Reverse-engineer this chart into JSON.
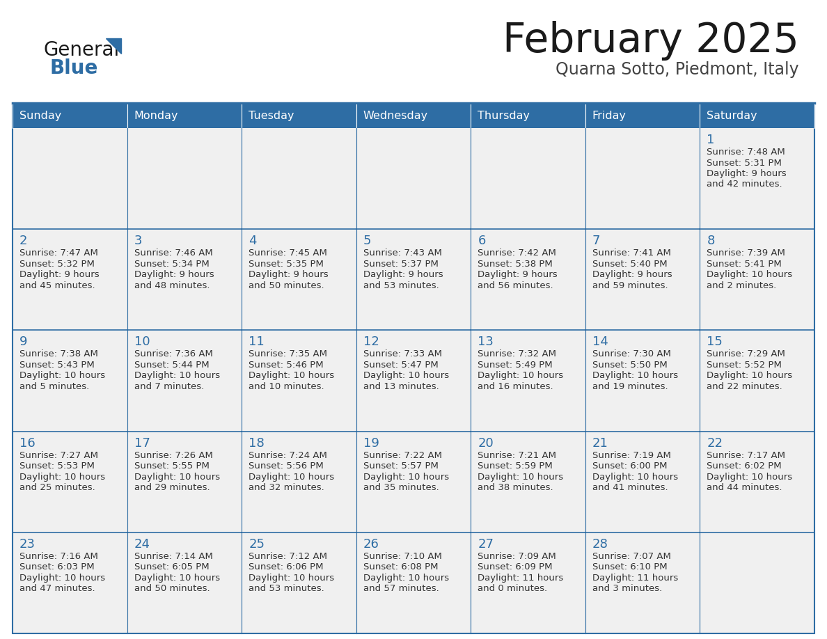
{
  "title": "February 2025",
  "subtitle": "Quarna Sotto, Piedmont, Italy",
  "header_bg": "#2E6DA4",
  "header_text": "#FFFFFF",
  "cell_bg": "#F0F0F0",
  "day_number_color": "#2E6DA4",
  "text_color": "#333333",
  "border_color": "#2E6DA4",
  "days_of_week": [
    "Sunday",
    "Monday",
    "Tuesday",
    "Wednesday",
    "Thursday",
    "Friday",
    "Saturday"
  ],
  "calendar_data": [
    [
      null,
      null,
      null,
      null,
      null,
      null,
      {
        "day": "1",
        "sunrise": "7:48 AM",
        "sunset": "5:31 PM",
        "daylight": "9 hours",
        "daylight2": "and 42 minutes."
      }
    ],
    [
      {
        "day": "2",
        "sunrise": "7:47 AM",
        "sunset": "5:32 PM",
        "daylight": "9 hours",
        "daylight2": "and 45 minutes."
      },
      {
        "day": "3",
        "sunrise": "7:46 AM",
        "sunset": "5:34 PM",
        "daylight": "9 hours",
        "daylight2": "and 48 minutes."
      },
      {
        "day": "4",
        "sunrise": "7:45 AM",
        "sunset": "5:35 PM",
        "daylight": "9 hours",
        "daylight2": "and 50 minutes."
      },
      {
        "day": "5",
        "sunrise": "7:43 AM",
        "sunset": "5:37 PM",
        "daylight": "9 hours",
        "daylight2": "and 53 minutes."
      },
      {
        "day": "6",
        "sunrise": "7:42 AM",
        "sunset": "5:38 PM",
        "daylight": "9 hours",
        "daylight2": "and 56 minutes."
      },
      {
        "day": "7",
        "sunrise": "7:41 AM",
        "sunset": "5:40 PM",
        "daylight": "9 hours",
        "daylight2": "and 59 minutes."
      },
      {
        "day": "8",
        "sunrise": "7:39 AM",
        "sunset": "5:41 PM",
        "daylight": "10 hours",
        "daylight2": "and 2 minutes."
      }
    ],
    [
      {
        "day": "9",
        "sunrise": "7:38 AM",
        "sunset": "5:43 PM",
        "daylight": "10 hours",
        "daylight2": "and 5 minutes."
      },
      {
        "day": "10",
        "sunrise": "7:36 AM",
        "sunset": "5:44 PM",
        "daylight": "10 hours",
        "daylight2": "and 7 minutes."
      },
      {
        "day": "11",
        "sunrise": "7:35 AM",
        "sunset": "5:46 PM",
        "daylight": "10 hours",
        "daylight2": "and 10 minutes."
      },
      {
        "day": "12",
        "sunrise": "7:33 AM",
        "sunset": "5:47 PM",
        "daylight": "10 hours",
        "daylight2": "and 13 minutes."
      },
      {
        "day": "13",
        "sunrise": "7:32 AM",
        "sunset": "5:49 PM",
        "daylight": "10 hours",
        "daylight2": "and 16 minutes."
      },
      {
        "day": "14",
        "sunrise": "7:30 AM",
        "sunset": "5:50 PM",
        "daylight": "10 hours",
        "daylight2": "and 19 minutes."
      },
      {
        "day": "15",
        "sunrise": "7:29 AM",
        "sunset": "5:52 PM",
        "daylight": "10 hours",
        "daylight2": "and 22 minutes."
      }
    ],
    [
      {
        "day": "16",
        "sunrise": "7:27 AM",
        "sunset": "5:53 PM",
        "daylight": "10 hours",
        "daylight2": "and 25 minutes."
      },
      {
        "day": "17",
        "sunrise": "7:26 AM",
        "sunset": "5:55 PM",
        "daylight": "10 hours",
        "daylight2": "and 29 minutes."
      },
      {
        "day": "18",
        "sunrise": "7:24 AM",
        "sunset": "5:56 PM",
        "daylight": "10 hours",
        "daylight2": "and 32 minutes."
      },
      {
        "day": "19",
        "sunrise": "7:22 AM",
        "sunset": "5:57 PM",
        "daylight": "10 hours",
        "daylight2": "and 35 minutes."
      },
      {
        "day": "20",
        "sunrise": "7:21 AM",
        "sunset": "5:59 PM",
        "daylight": "10 hours",
        "daylight2": "and 38 minutes."
      },
      {
        "day": "21",
        "sunrise": "7:19 AM",
        "sunset": "6:00 PM",
        "daylight": "10 hours",
        "daylight2": "and 41 minutes."
      },
      {
        "day": "22",
        "sunrise": "7:17 AM",
        "sunset": "6:02 PM",
        "daylight": "10 hours",
        "daylight2": "and 44 minutes."
      }
    ],
    [
      {
        "day": "23",
        "sunrise": "7:16 AM",
        "sunset": "6:03 PM",
        "daylight": "10 hours",
        "daylight2": "and 47 minutes."
      },
      {
        "day": "24",
        "sunrise": "7:14 AM",
        "sunset": "6:05 PM",
        "daylight": "10 hours",
        "daylight2": "and 50 minutes."
      },
      {
        "day": "25",
        "sunrise": "7:12 AM",
        "sunset": "6:06 PM",
        "daylight": "10 hours",
        "daylight2": "and 53 minutes."
      },
      {
        "day": "26",
        "sunrise": "7:10 AM",
        "sunset": "6:08 PM",
        "daylight": "10 hours",
        "daylight2": "and 57 minutes."
      },
      {
        "day": "27",
        "sunrise": "7:09 AM",
        "sunset": "6:09 PM",
        "daylight": "11 hours",
        "daylight2": "and 0 minutes."
      },
      {
        "day": "28",
        "sunrise": "7:07 AM",
        "sunset": "6:10 PM",
        "daylight": "11 hours",
        "daylight2": "and 3 minutes."
      },
      null
    ]
  ],
  "logo_general_color": "#1a1a1a",
  "logo_blue_color": "#2E6DA4",
  "title_color": "#1a1a1a",
  "subtitle_color": "#444444"
}
